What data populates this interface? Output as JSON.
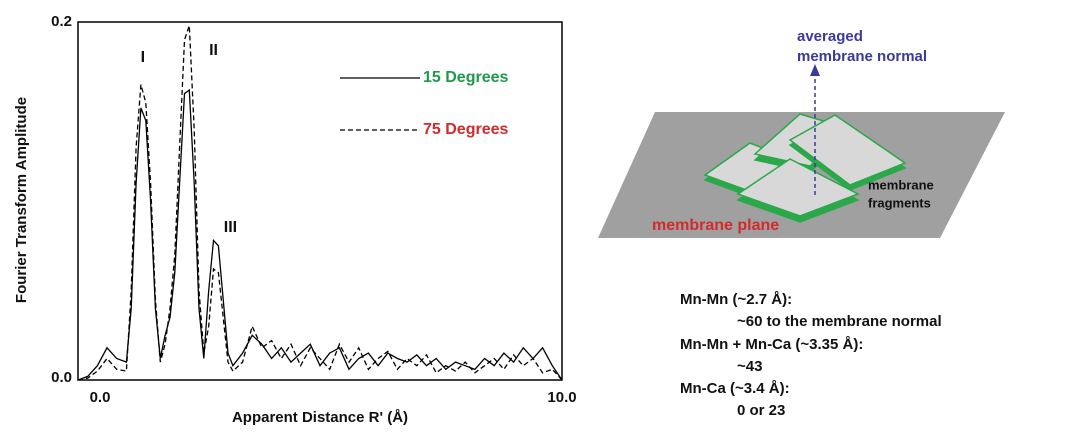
{
  "chart_data": {
    "type": "line",
    "x_label": "Apparent Distance R' (Å)",
    "y_label": "Fourier Transform Amplitude",
    "x": [
      0,
      0.2,
      0.4,
      0.6,
      0.8,
      1.0,
      1.1,
      1.2,
      1.3,
      1.4,
      1.5,
      1.6,
      1.7,
      1.8,
      1.9,
      2.0,
      2.1,
      2.2,
      2.3,
      2.4,
      2.5,
      2.6,
      2.7,
      2.8,
      2.9,
      3.0,
      3.1,
      3.2,
      3.4,
      3.6,
      3.8,
      4.0,
      4.2,
      4.4,
      4.6,
      4.8,
      5.0,
      5.2,
      5.4,
      5.6,
      5.8,
      6.0,
      6.2,
      6.4,
      6.6,
      6.8,
      7.0,
      7.2,
      7.4,
      7.6,
      7.8,
      8.0,
      8.2,
      8.4,
      8.6,
      8.8,
      9.0,
      9.2,
      9.4,
      9.6,
      9.8,
      10.0
    ],
    "series": [
      {
        "name": "15 Degrees",
        "color": "#000000",
        "legend_color": "#1e9a4a",
        "line_style": "solid",
        "values": [
          0,
          0.002,
          0.008,
          0.018,
          0.012,
          0.01,
          0.04,
          0.11,
          0.152,
          0.145,
          0.1,
          0.04,
          0.012,
          0.025,
          0.035,
          0.06,
          0.11,
          0.16,
          0.162,
          0.11,
          0.04,
          0.012,
          0.05,
          0.078,
          0.075,
          0.045,
          0.015,
          0.008,
          0.015,
          0.025,
          0.02,
          0.012,
          0.018,
          0.01,
          0.015,
          0.02,
          0.008,
          0.015,
          0.018,
          0.006,
          0.012,
          0.015,
          0.008,
          0.015,
          0.012,
          0.01,
          0.014,
          0.008,
          0.012,
          0.006,
          0.01,
          0.008,
          0.006,
          0.012,
          0.008,
          0.015,
          0.01,
          0.018,
          0.012,
          0.018,
          0.008,
          0
        ]
      },
      {
        "name": "75 Degrees",
        "color": "#000000",
        "legend_color": "#d42a2a",
        "line_style": "dashed",
        "values": [
          0,
          0.001,
          0.005,
          0.012,
          0.006,
          0.005,
          0.05,
          0.13,
          0.165,
          0.155,
          0.11,
          0.045,
          0.01,
          0.02,
          0.04,
          0.07,
          0.13,
          0.19,
          0.198,
          0.14,
          0.05,
          0.015,
          0.03,
          0.062,
          0.06,
          0.035,
          0.01,
          0.005,
          0.01,
          0.03,
          0.018,
          0.022,
          0.012,
          0.02,
          0.008,
          0.018,
          0.012,
          0.006,
          0.02,
          0.01,
          0.018,
          0.006,
          0.012,
          0.016,
          0.006,
          0.012,
          0.008,
          0.014,
          0.004,
          0.008,
          0.005,
          0.01,
          0.004,
          0.008,
          0.012,
          0.006,
          0.014,
          0.008,
          0.012,
          0.004,
          0.006,
          0
        ]
      }
    ],
    "annotations": [
      {
        "text": "I",
        "x": 1.34,
        "y": 0.18
      },
      {
        "text": "II",
        "x": 2.8,
        "y": 0.184
      },
      {
        "text": "III",
        "x": 3.15,
        "y": 0.085
      }
    ],
    "xlim": [
      0,
      10
    ],
    "ylim": [
      0,
      0.2
    ],
    "xticks": [
      {
        "value": 0,
        "label": "0.0"
      },
      {
        "value": 10,
        "label": "10.0"
      }
    ],
    "yticks": [
      {
        "value": 0,
        "label": "0.0"
      },
      0.2
    ],
    "grid": false
  },
  "diagram": {
    "normal_label": [
      "averaged",
      "membrane normal"
    ],
    "fragments_label": [
      "membrane",
      "fragments"
    ],
    "plane_label": "membrane plane",
    "results": [
      {
        "pair": "Mn-Mn (~2.7 Å):",
        "angle": "~60  to the membrane normal"
      },
      {
        "pair": "Mn-Mn + Mn-Ca (~3.35 Å):",
        "angle": "~43"
      },
      {
        "pair": "Mn-Ca (~3.4 Å):",
        "angle": "0 or 23"
      }
    ]
  }
}
